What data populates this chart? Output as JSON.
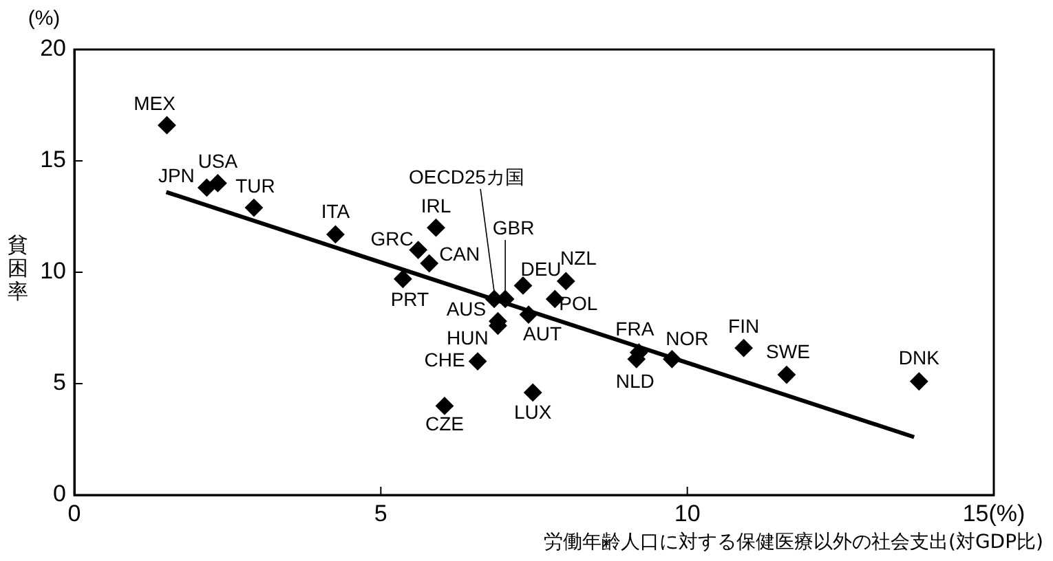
{
  "chart_data": {
    "type": "scatter",
    "xlabel": "労働年齢人口に対する保健医療以外の社会支出(対GDP比)",
    "ylabel": "貧困率",
    "annotations": [
      "(%)"
    ],
    "xlim": [
      0,
      15
    ],
    "xticks": [
      0,
      5,
      10,
      {
        "value": 15,
        "label": "15(%)"
      }
    ],
    "ylim": [
      0,
      20
    ],
    "yticks": [
      0,
      5,
      10,
      15,
      20
    ],
    "grid": false,
    "legend": false,
    "series": [
      {
        "marker": "diamond",
        "color": "#000000",
        "x": [
          1.51,
          2.16,
          2.34,
          2.93,
          4.26,
          5.9,
          5.61,
          5.79,
          5.36,
          6.85,
          7.03,
          7.32,
          8.02,
          7.84,
          6.91,
          7.41,
          6.91,
          6.58,
          6.04,
          7.48,
          9.21,
          9.17,
          9.75,
          10.92,
          11.62,
          13.78
        ],
        "values": [
          16.6,
          13.8,
          14.0,
          12.9,
          11.7,
          12.0,
          11.0,
          10.4,
          9.7,
          8.8,
          8.8,
          9.4,
          9.6,
          8.8,
          7.8,
          8.1,
          7.6,
          6.0,
          4.0,
          4.6,
          6.4,
          6.1,
          6.1,
          6.6,
          5.4,
          5.1
        ],
        "value_labels": [
          "MEX",
          "JPN",
          "USA",
          "TUR",
          "ITA",
          "IRL",
          "GRC",
          "CAN",
          "PRT",
          "OECD25カ国",
          "GBR",
          "DEU",
          "NZL",
          "POL",
          "AUS",
          "AUT",
          "HUN",
          "CHE",
          "CZE",
          "LUX",
          "FRA",
          "NLD",
          "NOR",
          "FIN",
          "SWE",
          "DNK"
        ]
      },
      {
        "type": "line",
        "color": "#000000",
        "x": [
          1.5,
          13.7
        ],
        "values": [
          13.6,
          2.6
        ]
      }
    ]
  }
}
